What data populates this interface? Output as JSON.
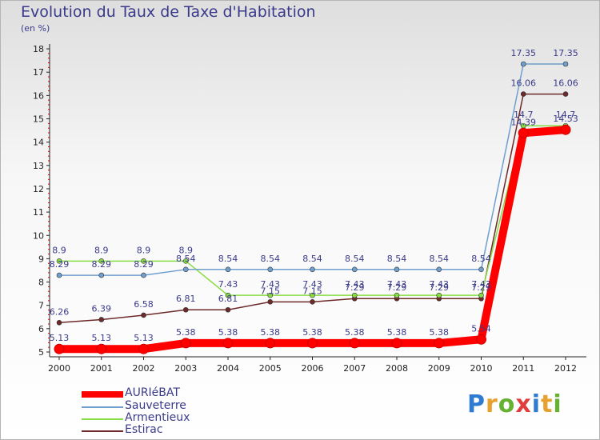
{
  "title": "Evolution du Taux de Taxe d'Habitation",
  "subtitle": "(en %)",
  "logo": {
    "letters": [
      "P",
      "r",
      "o",
      "x",
      "i",
      "t",
      "i"
    ],
    "colors": [
      "#2e7bd1",
      "#e8a02e",
      "#66b032",
      "#e23d3d",
      "#2e7bd1",
      "#e8a02e",
      "#66b032"
    ]
  },
  "chart_data": {
    "type": "line",
    "x": [
      "2000",
      "2001",
      "2002",
      "2003",
      "2004",
      "2005",
      "2006",
      "2007",
      "2008",
      "2009",
      "2010",
      "2011",
      "2012"
    ],
    "y_ticks": [
      "5",
      "6",
      "7",
      "8",
      "9",
      "10",
      "11",
      "12",
      "13",
      "14",
      "15",
      "16",
      "17",
      "18"
    ],
    "ylim": [
      5,
      18
    ],
    "grid": false,
    "legend_position": "bottom-left",
    "series": [
      {
        "name": "AURIéBAT",
        "color": "#ff0000",
        "values": [
          5.13,
          5.13,
          5.13,
          5.38,
          5.38,
          5.38,
          5.38,
          5.38,
          5.38,
          5.38,
          5.54,
          14.39,
          14.53
        ]
      },
      {
        "name": "Sauveterre",
        "color": "#6f9fcf",
        "values": [
          8.29,
          8.29,
          8.29,
          8.54,
          8.54,
          8.54,
          8.54,
          8.54,
          8.54,
          8.54,
          8.54,
          17.35,
          17.35
        ]
      },
      {
        "name": "Armentieux",
        "color": "#88dd44",
        "values": [
          8.9,
          8.9,
          8.9,
          8.9,
          7.43,
          7.43,
          7.43,
          7.43,
          7.43,
          7.43,
          7.43,
          14.7,
          14.7
        ]
      },
      {
        "name": "Estirac",
        "color": "#6e2a2a",
        "values": [
          6.26,
          6.39,
          6.58,
          6.81,
          6.81,
          7.15,
          7.15,
          7.29,
          7.29,
          7.29,
          7.29,
          16.06,
          16.06
        ]
      }
    ],
    "data_labels": [
      [
        "5.13",
        "5.13",
        "5.13",
        "5.38",
        "5.38",
        "5.38",
        "5.38",
        "5.38",
        "5.38",
        "5.38",
        "5.54",
        "14.39",
        "14.53"
      ],
      [
        "8.29",
        "8.29",
        "8.29",
        "8.54",
        "8.54",
        "8.54",
        "8.54",
        "8.54",
        "8.54",
        "8.54",
        "8.54",
        "17.35",
        "17.35"
      ],
      [
        "8.9",
        "8.9",
        "8.9",
        "8.9",
        "7.43",
        "7.43",
        "7.43",
        "7.43",
        "7.43",
        "7.43",
        "7.43",
        "14.7",
        "14.7"
      ],
      [
        "6.26",
        "6.39",
        "6.58",
        "6.81",
        "6.81",
        "7.15",
        "7.15",
        "7.29",
        "7.29",
        "7.29",
        "7.29",
        "16.06",
        "16.06"
      ]
    ]
  }
}
